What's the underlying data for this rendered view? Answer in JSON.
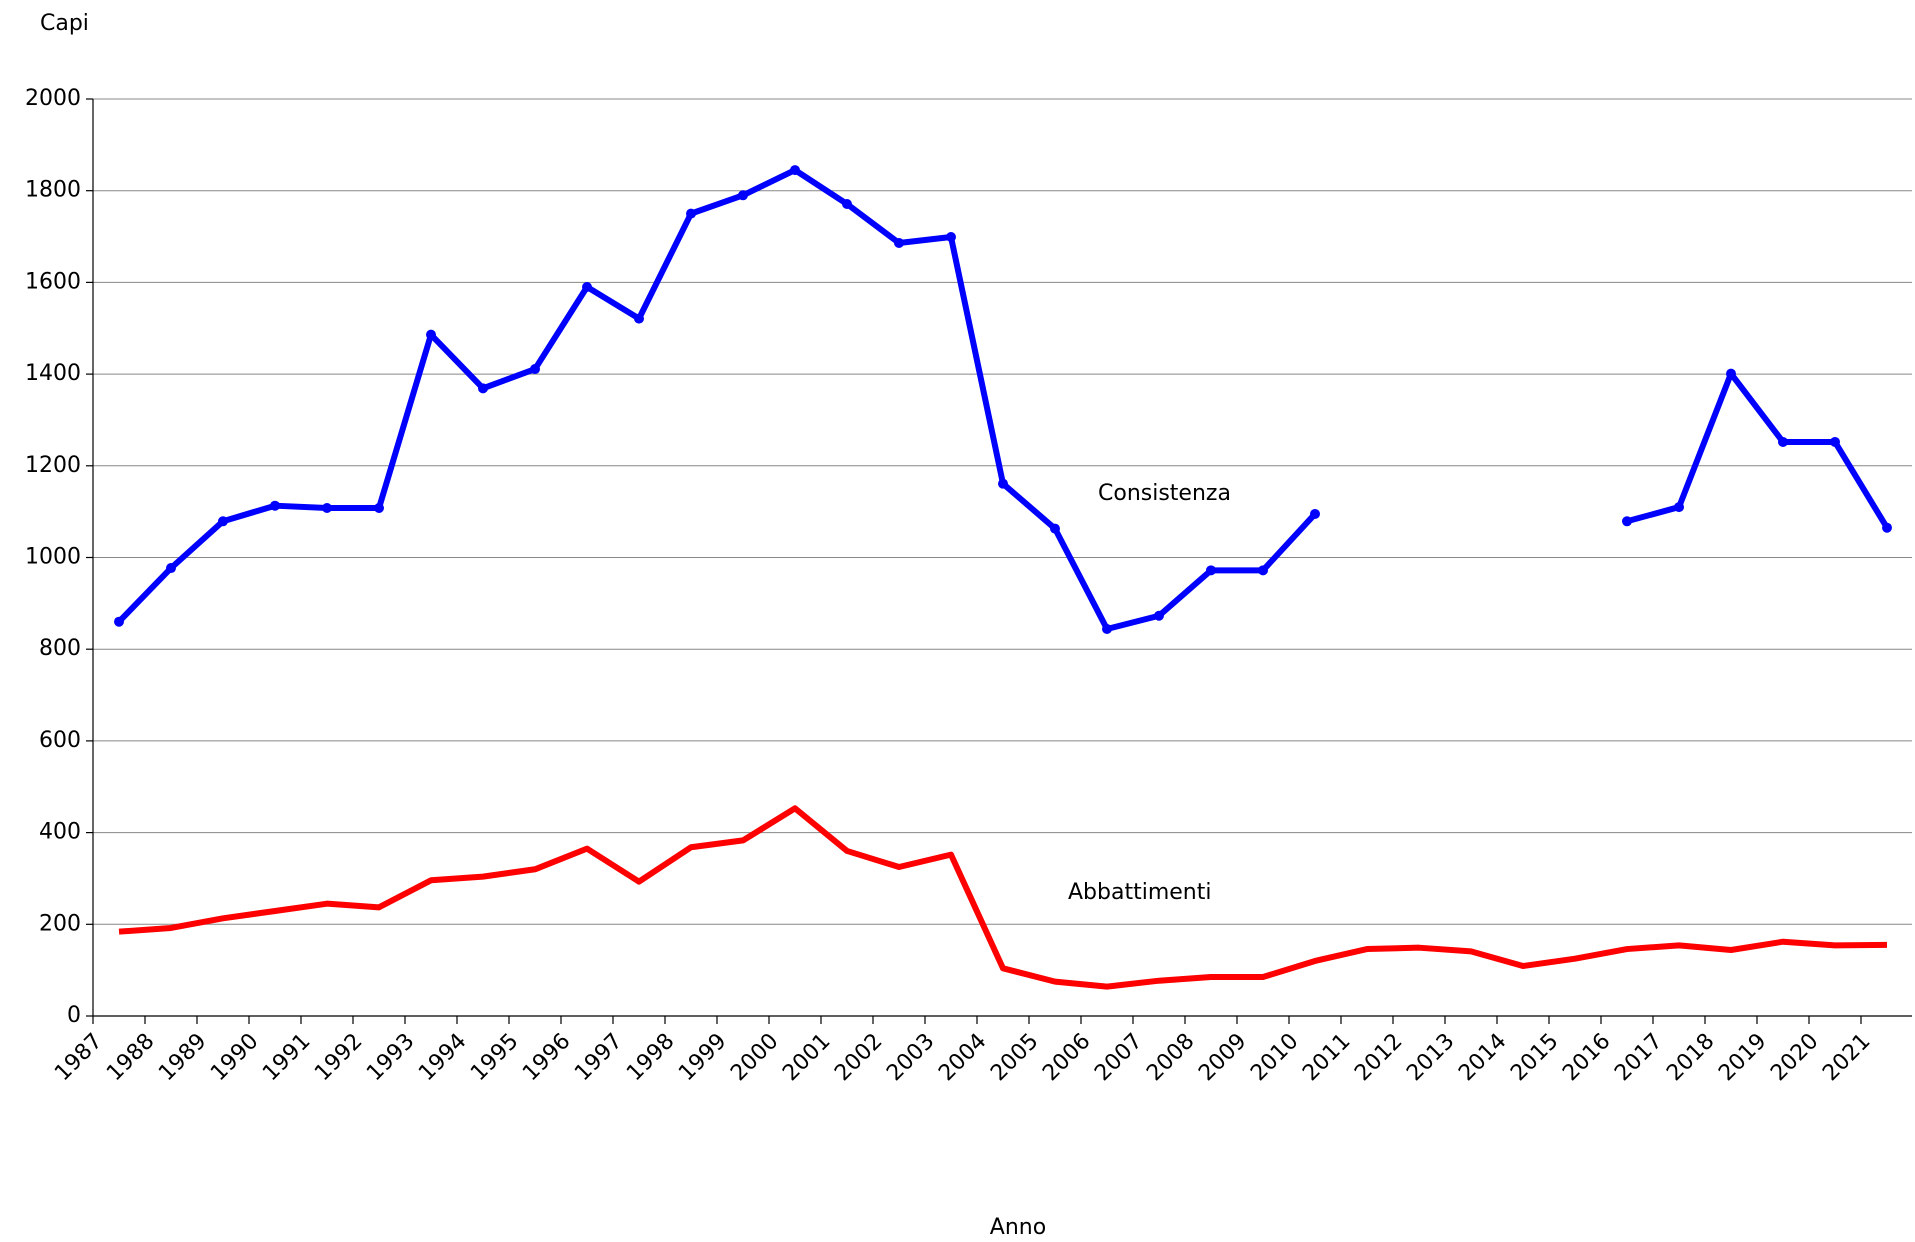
{
  "chart_data": {
    "type": "line",
    "y_label": "Capi",
    "x_label": "Anno",
    "annotations": [
      "Consistenza",
      "Abbattimenti"
    ],
    "categories": [
      "1987",
      "1988",
      "1989",
      "1990",
      "1991",
      "1992",
      "1993",
      "1994",
      "1995",
      "1996",
      "1997",
      "1998",
      "1999",
      "2000",
      "2001",
      "2002",
      "2003",
      "2004",
      "2005",
      "2006",
      "2007",
      "2008",
      "2009",
      "2010",
      "2011",
      "2012",
      "2013",
      "2014",
      "2015",
      "2016",
      "2017",
      "2018",
      "2019",
      "2020",
      "2021"
    ],
    "series": [
      {
        "name": "Consistenza",
        "color": "#0000ff",
        "markers": true,
        "values": [
          860,
          977,
          1079,
          1113,
          1108,
          1108,
          1486,
          1369,
          1411,
          1590,
          1521,
          1750,
          1790,
          1845,
          1771,
          1686,
          1699,
          1161,
          1063,
          844,
          873,
          972,
          972,
          1095,
          null,
          null,
          null,
          null,
          null,
          1079,
          1110,
          1401,
          1252,
          1252,
          1065
        ]
      },
      {
        "name": "Abbattimenti",
        "color": "#ff0000",
        "markers": false,
        "values": [
          184,
          192,
          213,
          229,
          245,
          237,
          296,
          304,
          320,
          365,
          293,
          368,
          383,
          453,
          360,
          325,
          352,
          104,
          75,
          64,
          77,
          85,
          85,
          120,
          146,
          149,
          141,
          109,
          125,
          146,
          154,
          144,
          162,
          154,
          155
        ]
      }
    ],
    "ylim": [
      0,
      2000
    ],
    "yticks": [
      0,
      200,
      400,
      600,
      800,
      1000,
      1200,
      1400,
      1600,
      1800,
      2000
    ],
    "grid": true
  }
}
